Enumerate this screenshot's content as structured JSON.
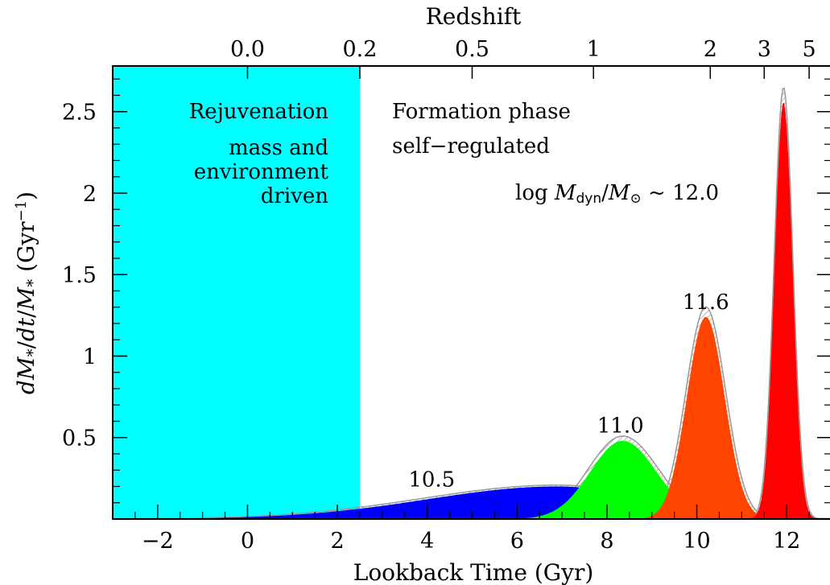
{
  "chart_data": {
    "type": "area",
    "title": "",
    "xlabel": "Lookback Time (Gyr)",
    "ylabel": "dM*/dt/M* (Gyr⁻¹)",
    "ylabel_parts": {
      "d1": "d",
      "m1": "M",
      "star1": "*",
      "slash1": "/",
      "dt": "dt",
      "slash2": "/",
      "m2": "M",
      "star2": "*",
      "unit_open": " (Gyr",
      "unit_sup": "−1",
      "unit_close": ")"
    },
    "top_axis_label": "Redshift",
    "xlim": [
      -3,
      13
    ],
    "ylim": [
      0,
      2.78
    ],
    "x_ticks": [
      -2,
      0,
      2,
      4,
      6,
      8,
      10,
      12
    ],
    "x_tick_labels": [
      "−2",
      "0",
      "2",
      "4",
      "6",
      "8",
      "10",
      "12"
    ],
    "y_ticks": [
      0.5,
      1,
      1.5,
      2,
      2.5
    ],
    "y_tick_labels": [
      "0.5",
      "1",
      "1.5",
      "2",
      "2.5"
    ],
    "top_ticks": [
      {
        "label": "0.0",
        "x": 0.0
      },
      {
        "label": "0.2",
        "x": 2.5
      },
      {
        "label": "0.5",
        "x": 5.0
      },
      {
        "label": "1",
        "x": 7.7
      },
      {
        "label": "2",
        "x": 10.3
      },
      {
        "label": "3",
        "x": 11.5
      },
      {
        "label": "5",
        "x": 12.5
      }
    ],
    "shaded_region": {
      "x0": -3,
      "x1": 2.5,
      "color": "#00FFFF"
    },
    "phase_labels": {
      "rejuvenation_title": "Rejuvenation",
      "rejuvenation_line1": "mass and",
      "rejuvenation_line2": "environment",
      "rejuvenation_line3": "driven",
      "formation_title": "Formation phase",
      "formation_sub": "self−regulated"
    },
    "mass_label": {
      "prefix": "log ",
      "m": "M",
      "sub_dyn": "dyn",
      "slash": "/",
      "m2": "M",
      "sub_sun": "⊙",
      "suffix": " ~ 12.0",
      "color": "#FF0000"
    },
    "series": [
      {
        "name": "10.5",
        "color": "#0000FF",
        "peak_x": 6.9,
        "peak_y": 0.2,
        "sigma_left": 2.9,
        "sigma_right": 2.0,
        "envelope": 0.04
      },
      {
        "name": "11.0",
        "color": "#00FF00",
        "peak_x": 8.35,
        "peak_y": 0.48,
        "sigma_left": 0.72,
        "sigma_right": 0.75,
        "envelope": 0.06
      },
      {
        "name": "11.6",
        "color": "#FF4500",
        "peak_x": 10.2,
        "peak_y": 1.24,
        "sigma_left": 0.42,
        "sigma_right": 0.42,
        "envelope": 0.05
      },
      {
        "name": "12.0",
        "color": "#FF0000",
        "peak_x": 11.93,
        "peak_y": 2.56,
        "sigma_left": 0.2,
        "sigma_right": 0.2,
        "envelope": 0.035
      }
    ],
    "series_labels": [
      {
        "text": "10.5",
        "color": "#0000FF",
        "x": 4.1,
        "y": 0.2
      },
      {
        "text": "11.0",
        "color": "#00FF00",
        "x": 8.3,
        "y": 0.53
      },
      {
        "text": "11.6",
        "color": "#FF4500",
        "x": 10.2,
        "y": 1.29
      }
    ]
  }
}
